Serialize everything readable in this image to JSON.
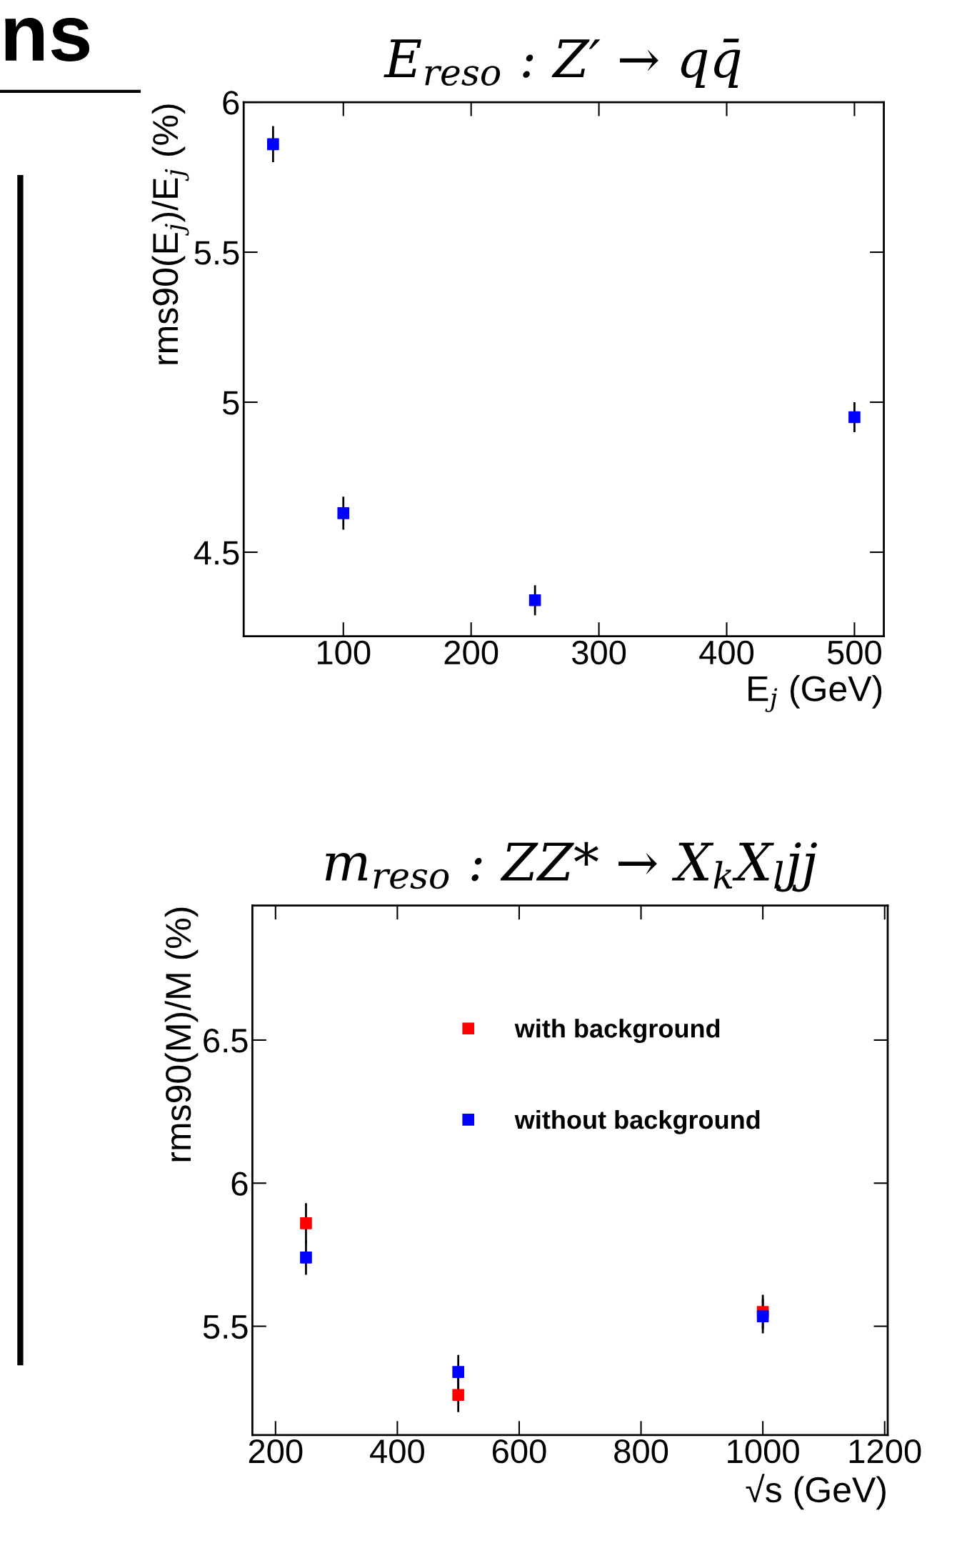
{
  "chart_data": [
    {
      "type": "scatter",
      "title": "E$_{reso}$ : Z′ → qq̄",
      "xlabel": "E$_{j}$ (GeV)",
      "ylabel": "rms90(E$_{j}$)/E$_{j}$ (%)",
      "annotations": [
        "ns"
      ],
      "x": [
        45,
        100,
        250,
        500
      ],
      "marker": "square",
      "grid": false,
      "legend": false,
      "xlim": [
        22,
        523
      ],
      "xticks": [
        100,
        200,
        300,
        400,
        500
      ],
      "ylim": [
        4.22,
        6.0
      ],
      "yticks": [
        4.5,
        5,
        5.5,
        6
      ],
      "series": [
        {
          "color": "#0000ff",
          "values": [
            5.86,
            4.63,
            4.34,
            4.95
          ],
          "errors": [
            0.06,
            0.055,
            0.05,
            0.05
          ]
        }
      ]
    },
    {
      "type": "scatter",
      "title": "m$_{reso}$ : ZZ* → X$_{k}$X$_{l}$jj",
      "xlabel": "√s (GeV)",
      "ylabel": "rms90(M)/M (%)",
      "x": [
        250,
        500,
        1000
      ],
      "marker": "square",
      "grid": false,
      "legend": "top",
      "xlim": [
        162,
        1205
      ],
      "xticks": [
        200,
        400,
        600,
        800,
        1000,
        1200
      ],
      "ylim": [
        5.12,
        6.97
      ],
      "yticks": [
        5.5,
        6,
        6.5
      ],
      "series": [
        {
          "name": "with background",
          "color": "#ff0000",
          "values": [
            5.86,
            5.26,
            5.55
          ],
          "errors": [
            0.07,
            0.06,
            0.06
          ]
        },
        {
          "name": "without background",
          "color": "#0000ff",
          "values": [
            5.74,
            5.34,
            5.535
          ],
          "errors": [
            0.06,
            0.06,
            0.06
          ]
        }
      ]
    }
  ]
}
